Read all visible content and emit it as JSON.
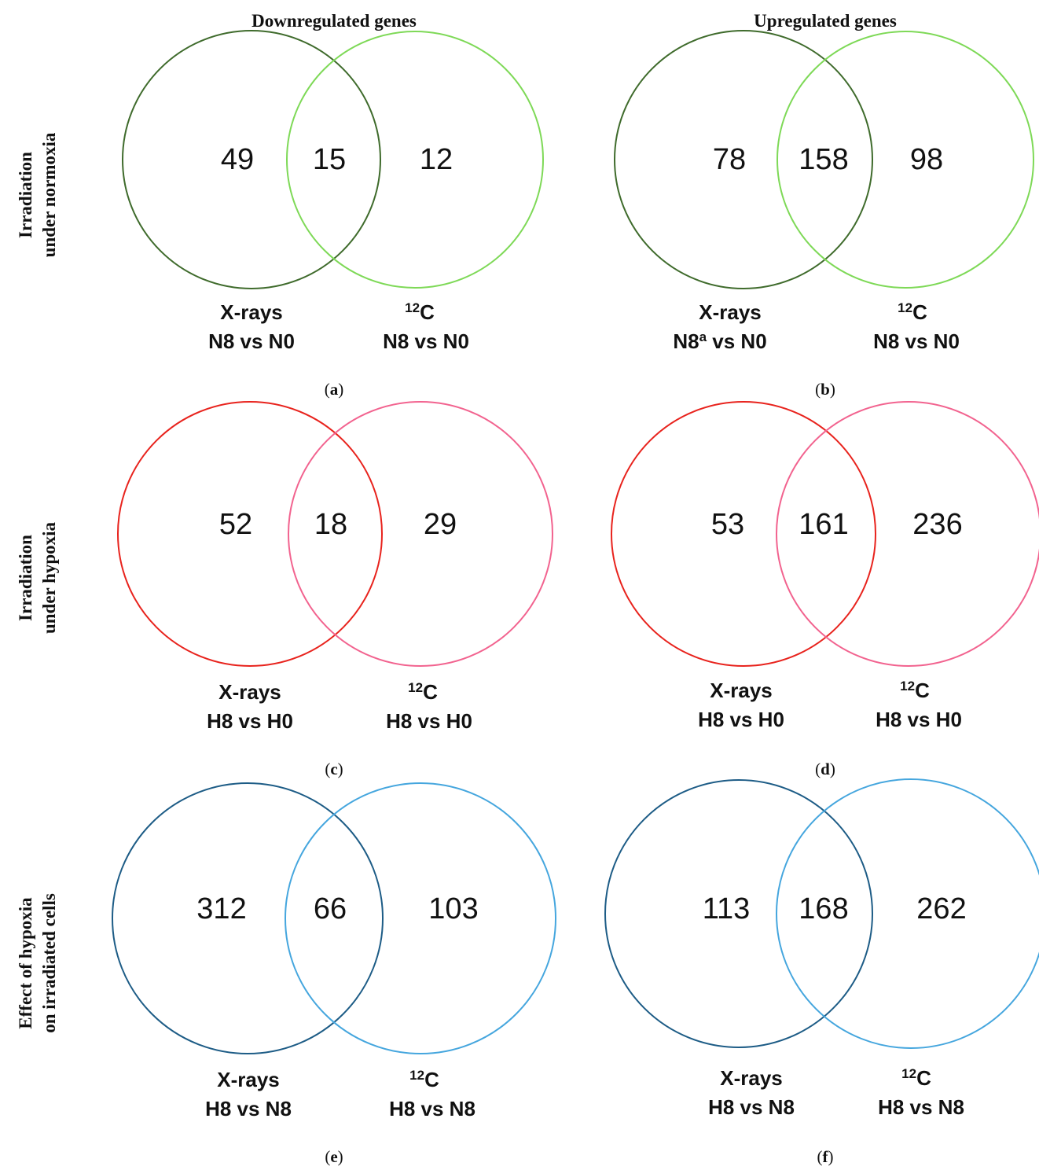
{
  "column_titles": [
    "Downregulated genes",
    "Upregulated genes"
  ],
  "row_labels": [
    [
      "Irradiation",
      "under normoxia"
    ],
    [
      "Irradiation",
      "under hypoxia"
    ],
    [
      "Effect of hypoxia",
      "on irradiated cells"
    ]
  ],
  "panels": [
    {
      "letter": "a",
      "left": {
        "name": "X-rays",
        "comparison": "N8 vs N0",
        "sup": ""
      },
      "right": {
        "name": "C",
        "name_sup": "12",
        "comparison": "N8 vs N0"
      },
      "counts": {
        "left_only": "49",
        "overlap": "15",
        "right_only": "12"
      },
      "colors": {
        "left": "#3f6b2c",
        "right": "#7ed957"
      }
    },
    {
      "letter": "b",
      "left": {
        "name": "X-rays",
        "comparison_prefix": "N8",
        "sup": "a",
        "comparison_suffix": " vs N0"
      },
      "right": {
        "name": "C",
        "name_sup": "12",
        "comparison": "N8 vs N0"
      },
      "counts": {
        "left_only": "78",
        "overlap": "158",
        "right_only": "98"
      },
      "colors": {
        "left": "#3f6b2c",
        "right": "#7ed957"
      }
    },
    {
      "letter": "c",
      "left": {
        "name": "X-rays",
        "comparison": "H8 vs H0"
      },
      "right": {
        "name": "C",
        "name_sup": "12",
        "comparison": "H8 vs H0"
      },
      "counts": {
        "left_only": "52",
        "overlap": "18",
        "right_only": "29"
      },
      "colors": {
        "left": "#e8231d",
        "right": "#f2638f"
      }
    },
    {
      "letter": "d",
      "left": {
        "name": "X-rays",
        "comparison": "H8 vs H0"
      },
      "right": {
        "name": "C",
        "name_sup": "12",
        "comparison": "H8 vs H0"
      },
      "counts": {
        "left_only": "53",
        "overlap": "161",
        "right_only": "236"
      },
      "colors": {
        "left": "#e8231d",
        "right": "#f2638f"
      }
    },
    {
      "letter": "e",
      "left": {
        "name": "X-rays",
        "comparison": "H8 vs N8"
      },
      "right": {
        "name": "C",
        "name_sup": "12",
        "comparison": "H8 vs N8"
      },
      "counts": {
        "left_only": "312",
        "overlap": "66",
        "right_only": "103"
      },
      "colors": {
        "left": "#1d5c86",
        "right": "#45a6de"
      }
    },
    {
      "letter": "f",
      "left": {
        "name": "X-rays",
        "comparison": "H8 vs N8"
      },
      "right": {
        "name": "C",
        "name_sup": "12",
        "comparison": "H8 vs N8"
      },
      "counts": {
        "left_only": "113",
        "overlap": "168",
        "right_only": "262"
      },
      "colors": {
        "left": "#1d5c86",
        "right": "#45a6de"
      }
    }
  ]
}
